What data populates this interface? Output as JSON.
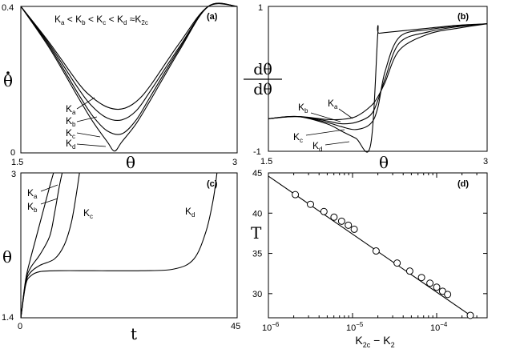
{
  "chart_data": [
    {
      "panel": "(a)",
      "type": "line",
      "title": "K_a < K_b < K_c < K_d ≈K_2c",
      "xlabel": "θ",
      "ylabel": "θ̇",
      "xlim": [
        1.5,
        3
      ],
      "ylim": [
        0,
        0.4
      ],
      "x_ticks": [
        "1.5",
        "3"
      ],
      "y_ticks": [
        "0",
        "0.4"
      ],
      "series": [
        {
          "name": "K_a",
          "x": [
            1.5,
            1.7,
            1.9,
            2.0,
            2.1,
            2.2,
            2.3,
            2.4,
            2.6,
            2.8,
            3.0
          ],
          "values": [
            0.4,
            0.3,
            0.19,
            0.15,
            0.125,
            0.12,
            0.14,
            0.185,
            0.3,
            0.4,
            0.4
          ]
        },
        {
          "name": "K_b",
          "x": [
            1.5,
            1.7,
            1.9,
            2.0,
            2.1,
            2.2,
            2.3,
            2.4,
            2.6,
            2.8,
            3.0
          ],
          "values": [
            0.4,
            0.295,
            0.175,
            0.125,
            0.095,
            0.09,
            0.115,
            0.17,
            0.29,
            0.4,
            0.4
          ]
        },
        {
          "name": "K_c",
          "x": [
            1.5,
            1.7,
            1.9,
            2.0,
            2.1,
            2.2,
            2.3,
            2.4,
            2.6,
            2.8,
            3.0
          ],
          "values": [
            0.4,
            0.29,
            0.16,
            0.1,
            0.06,
            0.052,
            0.09,
            0.155,
            0.285,
            0.4,
            0.4
          ]
        },
        {
          "name": "K_d",
          "x": [
            1.5,
            1.7,
            1.9,
            2.0,
            2.1,
            2.15,
            2.2,
            2.3,
            2.4,
            2.6,
            2.8,
            3.0
          ],
          "values": [
            0.4,
            0.285,
            0.15,
            0.085,
            0.03,
            0.005,
            0.03,
            0.08,
            0.145,
            0.28,
            0.4,
            0.4
          ]
        }
      ]
    },
    {
      "panel": "(b)",
      "type": "line",
      "xlabel": "θ",
      "ylabel_num": "dθ̇",
      "ylabel_den": "dθ",
      "xlim": [
        1.5,
        3
      ],
      "ylim": [
        -1,
        1
      ],
      "x_ticks": [
        "1.5",
        "3"
      ],
      "y_ticks": [
        "1",
        "-1"
      ],
      "series": [
        {
          "name": "K_a",
          "x": [
            1.5,
            1.7,
            1.9,
            2.0,
            2.1,
            2.2,
            2.25,
            2.3,
            2.4,
            2.6,
            2.8,
            3.0
          ],
          "values": [
            -0.55,
            -0.52,
            -0.56,
            -0.56,
            -0.52,
            -0.38,
            -0.25,
            -0.05,
            0.4,
            0.62,
            0.7,
            0.76
          ]
        },
        {
          "name": "K_b",
          "x": [
            1.5,
            1.7,
            1.9,
            2.0,
            2.1,
            2.2,
            2.25,
            2.3,
            2.4,
            2.6,
            2.8,
            3.0
          ],
          "values": [
            -0.55,
            -0.52,
            -0.58,
            -0.62,
            -0.6,
            -0.5,
            -0.3,
            0.0,
            0.5,
            0.65,
            0.72,
            0.76
          ]
        },
        {
          "name": "K_c",
          "x": [
            1.5,
            1.7,
            1.9,
            2.0,
            2.1,
            2.2,
            2.25,
            2.3,
            2.4,
            2.6,
            2.8,
            3.0
          ],
          "values": [
            -0.55,
            -0.52,
            -0.6,
            -0.66,
            -0.7,
            -0.62,
            -0.4,
            0.1,
            0.58,
            0.68,
            0.73,
            0.76
          ]
        },
        {
          "name": "K_d",
          "x": [
            1.5,
            1.7,
            1.9,
            2.0,
            2.1,
            2.2,
            2.2501,
            2.26,
            2.4,
            2.6,
            2.8,
            3.0
          ],
          "values": [
            -0.55,
            -0.52,
            -0.62,
            -0.72,
            -0.82,
            -0.92,
            0.62,
            0.63,
            0.66,
            0.7,
            0.74,
            0.76
          ]
        }
      ]
    },
    {
      "panel": "(c)",
      "type": "line",
      "xlabel": "t",
      "ylabel": "θ",
      "xlim": [
        0,
        45
      ],
      "ylim": [
        1.4,
        3
      ],
      "x_ticks": [
        "0",
        "45"
      ],
      "y_ticks": [
        "3",
        "1.4"
      ],
      "series": [
        {
          "name": "K_a",
          "x": [
            0,
            1,
            2,
            3,
            4,
            5,
            6,
            6.8
          ],
          "values": [
            1.4,
            1.82,
            2.05,
            2.25,
            2.45,
            2.65,
            2.85,
            3.0
          ]
        },
        {
          "name": "K_b",
          "x": [
            0,
            1,
            2,
            4,
            6,
            7,
            8,
            8.6
          ],
          "values": [
            1.4,
            1.8,
            1.95,
            2.1,
            2.3,
            2.55,
            2.85,
            3.0
          ]
        },
        {
          "name": "K_c",
          "x": [
            0,
            1,
            2,
            4,
            7,
            9,
            10.5,
            11.5,
            12.2
          ],
          "values": [
            1.4,
            1.78,
            1.9,
            1.98,
            2.05,
            2.2,
            2.45,
            2.75,
            3.0
          ]
        },
        {
          "name": "K_d",
          "x": [
            0,
            1,
            2,
            4,
            8,
            15,
            25,
            32,
            36,
            38.5,
            40,
            40.8
          ],
          "values": [
            1.4,
            1.76,
            1.86,
            1.91,
            1.92,
            1.92,
            1.92,
            1.94,
            2.05,
            2.35,
            2.7,
            3.0
          ]
        }
      ]
    },
    {
      "panel": "(d)",
      "type": "scatter",
      "xscale": "log",
      "xlabel": "K_2c − K_2",
      "ylabel": "T",
      "xlim_log10": [
        -6,
        -3.4
      ],
      "ylim": [
        27,
        45
      ],
      "x_ticks": [
        {
          "exp": -6,
          "label": "10",
          "sup": "−6"
        },
        {
          "exp": -5,
          "label": "10",
          "sup": "−5"
        },
        {
          "exp": -4,
          "label": "10",
          "sup": "−4"
        }
      ],
      "y_ticks": [
        "30",
        "35",
        "40",
        "45"
      ],
      "points_log10x": [
        -5.68,
        -5.5,
        -5.34,
        -5.22,
        -5.13,
        -5.05,
        -4.98,
        -4.72,
        -4.47,
        -4.32,
        -4.18,
        -4.08,
        -4.0,
        -3.93,
        -3.87,
        -3.6
      ],
      "points_y": [
        42.3,
        41.1,
        40.2,
        39.5,
        39.0,
        38.5,
        38.0,
        35.3,
        33.8,
        32.8,
        32.0,
        31.3,
        30.8,
        30.3,
        29.9,
        27.3
      ],
      "fit_line": {
        "x1_log10": -6,
        "y1": 44.6,
        "x2_log10": -3.6,
        "y2": 27.3
      }
    }
  ],
  "labels": {
    "Ka": "K",
    "Kb": "K",
    "Kc": "K",
    "Kd": "K",
    "sub_a": "a",
    "sub_b": "b",
    "sub_c": "c",
    "sub_d": "d",
    "sub_2c": "2c"
  }
}
